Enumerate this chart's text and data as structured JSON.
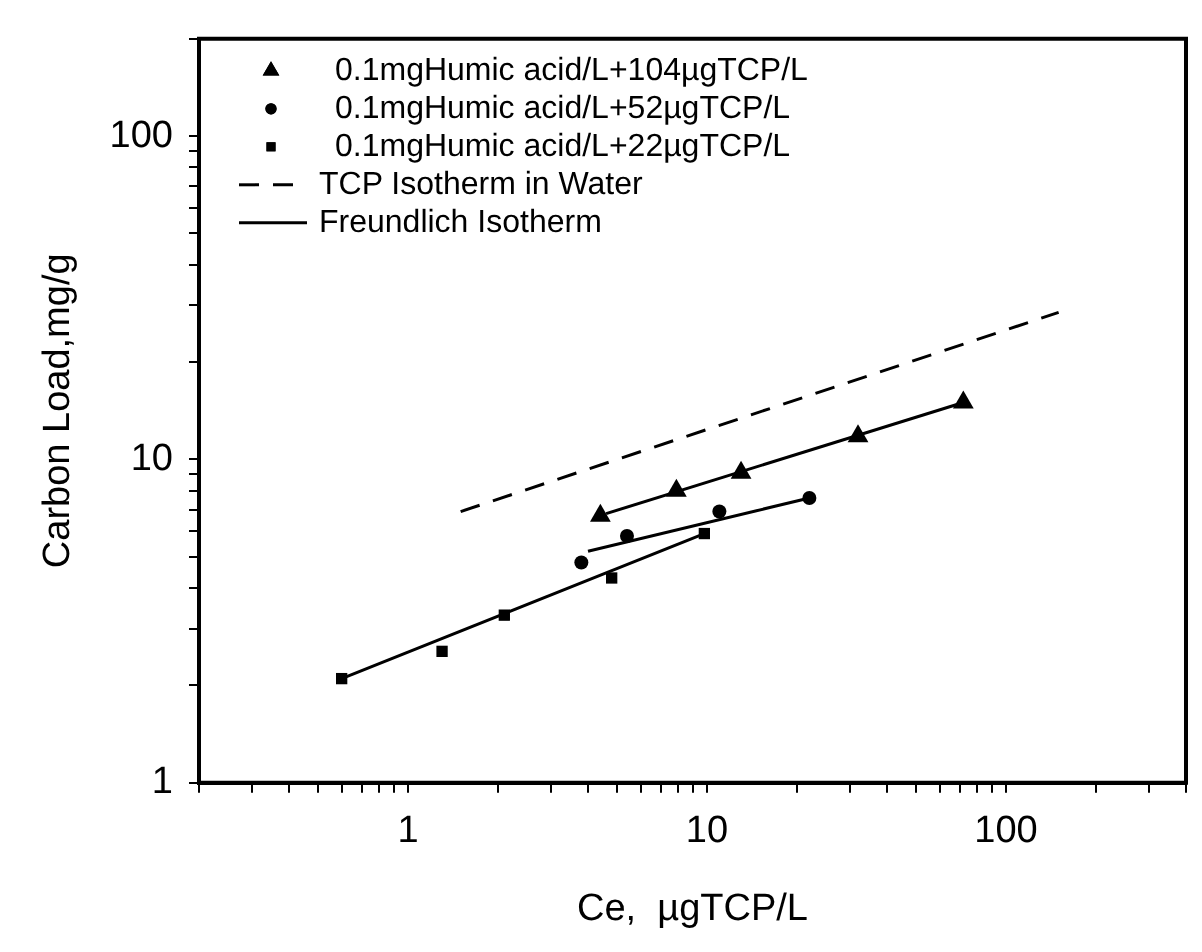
{
  "chart_data": {
    "type": "scatter",
    "xlabel": "Ce,  µgTCP/L",
    "ylabel": "Carbon Load,mg/g",
    "log": "xy",
    "grid": false,
    "legend": "top left",
    "xlim": [
      0.2,
      400
    ],
    "ylim": [
      1,
      200
    ],
    "xticks": [
      {
        "value": 0.2,
        "label": null
      },
      {
        "value": 0.3,
        "label": null
      },
      {
        "value": 0.4,
        "label": null
      },
      {
        "value": 0.5,
        "label": null
      },
      {
        "value": 0.6,
        "label": null
      },
      {
        "value": 0.7,
        "label": null
      },
      {
        "value": 0.8,
        "label": null
      },
      {
        "value": 0.9,
        "label": null
      },
      1,
      {
        "value": 2,
        "label": null
      },
      {
        "value": 3,
        "label": null
      },
      {
        "value": 4,
        "label": null
      },
      {
        "value": 5,
        "label": null
      },
      {
        "value": 6,
        "label": null
      },
      {
        "value": 7,
        "label": null
      },
      {
        "value": 8,
        "label": null
      },
      {
        "value": 9,
        "label": null
      },
      10,
      {
        "value": 20,
        "label": null
      },
      {
        "value": 30,
        "label": null
      },
      {
        "value": 40,
        "label": null
      },
      {
        "value": 50,
        "label": null
      },
      {
        "value": 60,
        "label": null
      },
      {
        "value": 70,
        "label": null
      },
      {
        "value": 80,
        "label": null
      },
      {
        "value": 90,
        "label": null
      },
      100,
      {
        "value": 200,
        "label": null
      },
      {
        "value": 300,
        "label": null
      },
      {
        "value": 400,
        "label": null
      }
    ],
    "yticks": [
      1,
      {
        "value": 2,
        "label": null
      },
      {
        "value": 3,
        "label": null
      },
      {
        "value": 4,
        "label": null
      },
      {
        "value": 5,
        "label": null
      },
      {
        "value": 6,
        "label": null
      },
      {
        "value": 7,
        "label": null
      },
      {
        "value": 8,
        "label": null
      },
      {
        "value": 9,
        "label": null
      },
      10,
      {
        "value": 20,
        "label": null
      },
      {
        "value": 30,
        "label": null
      },
      {
        "value": 40,
        "label": null
      },
      {
        "value": 50,
        "label": null
      },
      {
        "value": 60,
        "label": null
      },
      {
        "value": 70,
        "label": null
      },
      {
        "value": 80,
        "label": null
      },
      {
        "value": 90,
        "label": null
      },
      100,
      {
        "value": 200,
        "label": null
      }
    ],
    "series": [
      {
        "name": "0.1mgHumic acid/L+104µgTCP/L",
        "type": "scatter",
        "marker": "triangle",
        "color": "#000000",
        "x": [
          4.4,
          7.9,
          13,
          32,
          72
        ],
        "values": [
          6.7,
          8,
          9.1,
          11.8,
          15
        ]
      },
      {
        "name": "0.1mgHumic acid/L+52µgTCP/L",
        "type": "scatter",
        "marker": "circle",
        "color": "#000000",
        "x": [
          3.8,
          5.4,
          11,
          22
        ],
        "values": [
          4.8,
          5.8,
          6.9,
          7.6
        ]
      },
      {
        "name": "0.1mgHumic acid/L+22µgTCP/L",
        "type": "scatter",
        "marker": "square",
        "color": "#000000",
        "x": [
          0.6,
          1.3,
          2.1,
          4.8,
          9.8
        ],
        "values": [
          2.1,
          2.55,
          3.3,
          4.3,
          5.9
        ]
      },
      {
        "name": "TCP Isotherm in Water",
        "type": "line",
        "marker": "none",
        "line_style": "dashed",
        "color": "#000000",
        "x": [
          1.5,
          150
        ],
        "values": [
          6.9,
          28.5
        ]
      },
      {
        "name": "Freundlich Isotherm",
        "type": "line",
        "marker": "none",
        "line_style": "solid",
        "color": "#000000",
        "x": [
          4.6,
          72
        ],
        "values": [
          6.8,
          15
        ]
      },
      {
        "type": "line",
        "marker": "none",
        "line_style": "solid",
        "color": "#000000",
        "x": [
          4,
          22
        ],
        "values": [
          5.2,
          7.6
        ]
      },
      {
        "type": "line",
        "marker": "none",
        "line_style": "solid",
        "color": "#000000",
        "x": [
          0.6,
          9.8
        ],
        "values": [
          2.1,
          5.9
        ]
      }
    ]
  }
}
